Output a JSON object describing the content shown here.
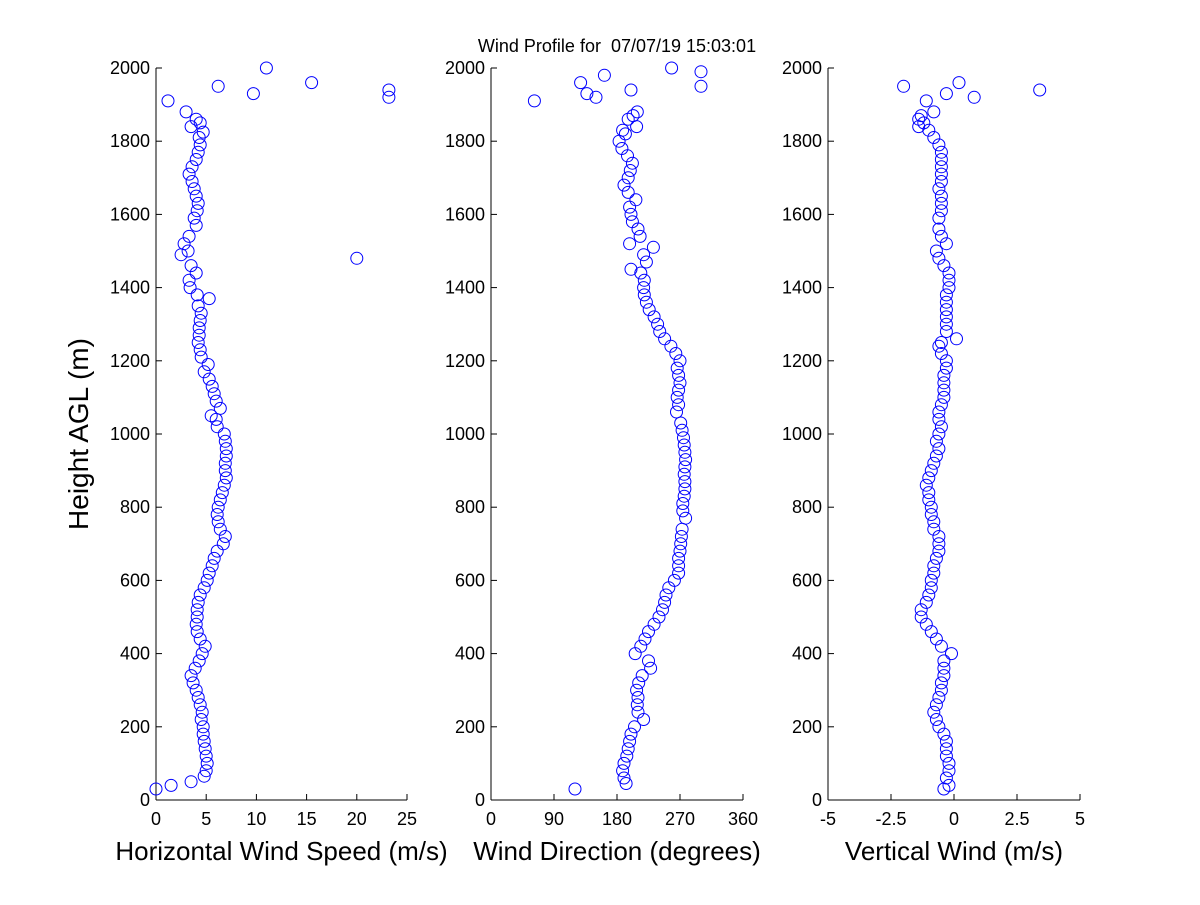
{
  "title": "Wind Profile for  07/07/19 15:03:01",
  "ylabel": "Height AGL (m)",
  "marker_color": "#0000ff",
  "chart_data": [
    {
      "type": "scatter",
      "xlabel": "Horizontal Wind Speed (m/s)",
      "ylabel": "Height AGL (m)",
      "xlim": [
        0,
        25
      ],
      "ylim": [
        0,
        2000
      ],
      "xticks": [
        0,
        5,
        10,
        15,
        20,
        25
      ],
      "xtick_labels": [
        "0",
        "5",
        "10",
        "15",
        "20",
        "25"
      ],
      "yticks": [
        0,
        200,
        400,
        600,
        800,
        1000,
        1200,
        1400,
        1600,
        1800,
        2000
      ],
      "ytick_labels": [
        "0",
        "200",
        "400",
        "600",
        "800",
        "1000",
        "1200",
        "1400",
        "1600",
        "1800",
        "2000"
      ],
      "grid": false,
      "marker": "open-circle",
      "points": [
        [
          0,
          30
        ],
        [
          1.5,
          40
        ],
        [
          3.5,
          50
        ],
        [
          4.8,
          65
        ],
        [
          5.0,
          80
        ],
        [
          5.1,
          100
        ],
        [
          5.0,
          120
        ],
        [
          4.9,
          140
        ],
        [
          4.8,
          160
        ],
        [
          4.7,
          180
        ],
        [
          4.7,
          200
        ],
        [
          4.5,
          220
        ],
        [
          4.6,
          240
        ],
        [
          4.4,
          260
        ],
        [
          4.2,
          280
        ],
        [
          4.0,
          300
        ],
        [
          3.7,
          320
        ],
        [
          3.5,
          340
        ],
        [
          3.9,
          360
        ],
        [
          4.3,
          380
        ],
        [
          4.6,
          400
        ],
        [
          4.9,
          420
        ],
        [
          4.4,
          440
        ],
        [
          4.1,
          460
        ],
        [
          4.0,
          480
        ],
        [
          4.1,
          500
        ],
        [
          4.1,
          520
        ],
        [
          4.2,
          540
        ],
        [
          4.4,
          560
        ],
        [
          4.8,
          580
        ],
        [
          5.1,
          600
        ],
        [
          5.3,
          620
        ],
        [
          5.6,
          640
        ],
        [
          5.8,
          660
        ],
        [
          6.1,
          680
        ],
        [
          6.7,
          700
        ],
        [
          6.9,
          720
        ],
        [
          6.4,
          740
        ],
        [
          6.2,
          760
        ],
        [
          6.1,
          780
        ],
        [
          6.2,
          800
        ],
        [
          6.4,
          820
        ],
        [
          6.6,
          840
        ],
        [
          6.8,
          860
        ],
        [
          7.0,
          880
        ],
        [
          6.9,
          900
        ],
        [
          6.9,
          920
        ],
        [
          7.0,
          940
        ],
        [
          7.0,
          960
        ],
        [
          6.9,
          980
        ],
        [
          6.8,
          1000
        ],
        [
          6.1,
          1020
        ],
        [
          6.0,
          1040
        ],
        [
          5.5,
          1050
        ],
        [
          6.4,
          1070
        ],
        [
          6.0,
          1090
        ],
        [
          5.8,
          1110
        ],
        [
          5.6,
          1130
        ],
        [
          5.3,
          1150
        ],
        [
          4.8,
          1170
        ],
        [
          5.2,
          1190
        ],
        [
          4.5,
          1210
        ],
        [
          4.4,
          1230
        ],
        [
          4.2,
          1250
        ],
        [
          4.3,
          1270
        ],
        [
          4.3,
          1290
        ],
        [
          4.4,
          1310
        ],
        [
          4.5,
          1330
        ],
        [
          4.2,
          1350
        ],
        [
          5.3,
          1370
        ],
        [
          4.1,
          1380
        ],
        [
          3.4,
          1400
        ],
        [
          3.3,
          1420
        ],
        [
          4.0,
          1440
        ],
        [
          3.5,
          1460
        ],
        [
          2.5,
          1490
        ],
        [
          20.0,
          1480
        ],
        [
          3.2,
          1500
        ],
        [
          2.8,
          1520
        ],
        [
          3.3,
          1540
        ],
        [
          4.0,
          1570
        ],
        [
          3.8,
          1590
        ],
        [
          4.1,
          1610
        ],
        [
          4.2,
          1630
        ],
        [
          4.0,
          1650
        ],
        [
          3.8,
          1670
        ],
        [
          3.6,
          1690
        ],
        [
          3.3,
          1710
        ],
        [
          3.6,
          1730
        ],
        [
          4.0,
          1750
        ],
        [
          4.2,
          1770
        ],
        [
          4.4,
          1790
        ],
        [
          4.3,
          1810
        ],
        [
          4.7,
          1825
        ],
        [
          3.5,
          1840
        ],
        [
          4.4,
          1850
        ],
        [
          4.0,
          1860
        ],
        [
          3.0,
          1880
        ],
        [
          1.2,
          1910
        ],
        [
          23.2,
          1920
        ],
        [
          9.7,
          1930
        ],
        [
          23.2,
          1940
        ],
        [
          6.2,
          1950
        ],
        [
          15.5,
          1960
        ],
        [
          11.0,
          2000
        ]
      ]
    },
    {
      "type": "scatter",
      "xlabel": "Wind Direction (degrees)",
      "xlim": [
        0,
        360
      ],
      "ylim": [
        0,
        2000
      ],
      "xticks": [
        0,
        90,
        180,
        270,
        360
      ],
      "xtick_labels": [
        "0",
        "90",
        "180",
        "270",
        "360"
      ],
      "yticks": [
        0,
        200,
        400,
        600,
        800,
        1000,
        1200,
        1400,
        1600,
        1800,
        2000
      ],
      "ytick_labels": [
        "0",
        "200",
        "400",
        "600",
        "800",
        "1000",
        "1200",
        "1400",
        "1600",
        "1800",
        "2000"
      ],
      "grid": false,
      "marker": "open-circle",
      "points": [
        [
          120,
          30
        ],
        [
          193,
          45
        ],
        [
          190,
          60
        ],
        [
          188,
          80
        ],
        [
          190,
          100
        ],
        [
          194,
          120
        ],
        [
          196,
          140
        ],
        [
          198,
          160
        ],
        [
          200,
          180
        ],
        [
          205,
          200
        ],
        [
          218,
          220
        ],
        [
          210,
          240
        ],
        [
          209,
          260
        ],
        [
          210,
          280
        ],
        [
          208,
          300
        ],
        [
          211,
          320
        ],
        [
          216,
          340
        ],
        [
          228,
          360
        ],
        [
          225,
          380
        ],
        [
          206,
          400
        ],
        [
          214,
          420
        ],
        [
          220,
          440
        ],
        [
          225,
          460
        ],
        [
          233,
          480
        ],
        [
          240,
          500
        ],
        [
          245,
          520
        ],
        [
          248,
          540
        ],
        [
          250,
          560
        ],
        [
          254,
          580
        ],
        [
          262,
          600
        ],
        [
          268,
          620
        ],
        [
          268,
          640
        ],
        [
          268,
          660
        ],
        [
          270,
          680
        ],
        [
          271,
          700
        ],
        [
          272,
          720
        ],
        [
          273,
          740
        ],
        [
          278,
          770
        ],
        [
          274,
          790
        ],
        [
          274,
          810
        ],
        [
          276,
          830
        ],
        [
          277,
          850
        ],
        [
          277,
          870
        ],
        [
          276,
          890
        ],
        [
          277,
          910
        ],
        [
          278,
          930
        ],
        [
          277,
          950
        ],
        [
          276,
          970
        ],
        [
          275,
          990
        ],
        [
          273,
          1010
        ],
        [
          271,
          1030
        ],
        [
          265,
          1060
        ],
        [
          268,
          1080
        ],
        [
          266,
          1100
        ],
        [
          268,
          1120
        ],
        [
          270,
          1140
        ],
        [
          268,
          1160
        ],
        [
          266,
          1180
        ],
        [
          270,
          1200
        ],
        [
          264,
          1220
        ],
        [
          257,
          1240
        ],
        [
          248,
          1260
        ],
        [
          241,
          1280
        ],
        [
          238,
          1300
        ],
        [
          233,
          1320
        ],
        [
          226,
          1340
        ],
        [
          222,
          1360
        ],
        [
          219,
          1380
        ],
        [
          218,
          1400
        ],
        [
          219,
          1420
        ],
        [
          214,
          1440
        ],
        [
          200,
          1450
        ],
        [
          222,
          1470
        ],
        [
          218,
          1490
        ],
        [
          232,
          1510
        ],
        [
          198,
          1520
        ],
        [
          213,
          1540
        ],
        [
          210,
          1560
        ],
        [
          202,
          1580
        ],
        [
          200,
          1600
        ],
        [
          198,
          1620
        ],
        [
          207,
          1640
        ],
        [
          196,
          1660
        ],
        [
          190,
          1680
        ],
        [
          196,
          1700
        ],
        [
          199,
          1720
        ],
        [
          202,
          1740
        ],
        [
          195,
          1760
        ],
        [
          187,
          1780
        ],
        [
          183,
          1800
        ],
        [
          192,
          1820
        ],
        [
          188,
          1830
        ],
        [
          208,
          1840
        ],
        [
          196,
          1860
        ],
        [
          203,
          1870
        ],
        [
          209,
          1880
        ],
        [
          62,
          1910
        ],
        [
          150,
          1920
        ],
        [
          137,
          1930
        ],
        [
          200,
          1940
        ],
        [
          300,
          1950
        ],
        [
          128,
          1960
        ],
        [
          162,
          1980
        ],
        [
          300,
          1990
        ],
        [
          258,
          2000
        ]
      ]
    },
    {
      "type": "scatter",
      "xlabel": "Vertical Wind (m/s)",
      "xlim": [
        -5,
        5
      ],
      "ylim": [
        0,
        2000
      ],
      "xticks": [
        -5,
        -2.5,
        0,
        2.5,
        5
      ],
      "xtick_labels": [
        "-5",
        "-2.5",
        "0",
        "2.5",
        "5"
      ],
      "yticks": [
        0,
        200,
        400,
        600,
        800,
        1000,
        1200,
        1400,
        1600,
        1800,
        2000
      ],
      "ytick_labels": [
        "0",
        "200",
        "400",
        "600",
        "800",
        "1000",
        "1200",
        "1400",
        "1600",
        "1800",
        "2000"
      ],
      "grid": false,
      "marker": "open-circle",
      "points": [
        [
          -0.4,
          30
        ],
        [
          -0.2,
          40
        ],
        [
          -0.3,
          60
        ],
        [
          -0.2,
          80
        ],
        [
          -0.2,
          100
        ],
        [
          -0.3,
          120
        ],
        [
          -0.3,
          140
        ],
        [
          -0.3,
          160
        ],
        [
          -0.4,
          180
        ],
        [
          -0.6,
          200
        ],
        [
          -0.7,
          220
        ],
        [
          -0.8,
          240
        ],
        [
          -0.7,
          260
        ],
        [
          -0.6,
          280
        ],
        [
          -0.5,
          300
        ],
        [
          -0.5,
          320
        ],
        [
          -0.4,
          340
        ],
        [
          -0.4,
          360
        ],
        [
          -0.4,
          380
        ],
        [
          -0.1,
          400
        ],
        [
          -0.5,
          420
        ],
        [
          -0.7,
          440
        ],
        [
          -0.9,
          460
        ],
        [
          -1.1,
          480
        ],
        [
          -1.3,
          500
        ],
        [
          -1.3,
          520
        ],
        [
          -1.1,
          540
        ],
        [
          -1.0,
          560
        ],
        [
          -0.9,
          580
        ],
        [
          -0.9,
          600
        ],
        [
          -0.8,
          620
        ],
        [
          -0.8,
          640
        ],
        [
          -0.7,
          660
        ],
        [
          -0.6,
          680
        ],
        [
          -0.6,
          700
        ],
        [
          -0.6,
          720
        ],
        [
          -0.8,
          740
        ],
        [
          -0.8,
          760
        ],
        [
          -0.9,
          780
        ],
        [
          -0.9,
          800
        ],
        [
          -1.0,
          820
        ],
        [
          -1.0,
          840
        ],
        [
          -1.1,
          860
        ],
        [
          -1.0,
          880
        ],
        [
          -0.9,
          900
        ],
        [
          -0.8,
          920
        ],
        [
          -0.7,
          940
        ],
        [
          -0.6,
          960
        ],
        [
          -0.7,
          980
        ],
        [
          -0.6,
          1000
        ],
        [
          -0.5,
          1020
        ],
        [
          -0.6,
          1040
        ],
        [
          -0.6,
          1060
        ],
        [
          -0.5,
          1080
        ],
        [
          -0.4,
          1100
        ],
        [
          -0.4,
          1120
        ],
        [
          -0.4,
          1140
        ],
        [
          -0.4,
          1160
        ],
        [
          -0.3,
          1180
        ],
        [
          -0.3,
          1200
        ],
        [
          -0.5,
          1220
        ],
        [
          -0.6,
          1240
        ],
        [
          -0.5,
          1250
        ],
        [
          0.1,
          1260
        ],
        [
          -0.3,
          1280
        ],
        [
          -0.3,
          1300
        ],
        [
          -0.3,
          1320
        ],
        [
          -0.3,
          1340
        ],
        [
          -0.3,
          1360
        ],
        [
          -0.3,
          1380
        ],
        [
          -0.2,
          1400
        ],
        [
          -0.2,
          1420
        ],
        [
          -0.2,
          1440
        ],
        [
          -0.4,
          1460
        ],
        [
          -0.6,
          1480
        ],
        [
          -0.7,
          1500
        ],
        [
          -0.3,
          1520
        ],
        [
          -0.5,
          1540
        ],
        [
          -0.6,
          1560
        ],
        [
          -0.6,
          1590
        ],
        [
          -0.5,
          1610
        ],
        [
          -0.5,
          1630
        ],
        [
          -0.5,
          1650
        ],
        [
          -0.6,
          1670
        ],
        [
          -0.5,
          1690
        ],
        [
          -0.5,
          1710
        ],
        [
          -0.5,
          1730
        ],
        [
          -0.5,
          1750
        ],
        [
          -0.5,
          1770
        ],
        [
          -0.6,
          1790
        ],
        [
          -0.8,
          1810
        ],
        [
          -1.0,
          1830
        ],
        [
          -1.4,
          1840
        ],
        [
          -1.2,
          1850
        ],
        [
          -1.4,
          1860
        ],
        [
          -1.3,
          1870
        ],
        [
          -0.8,
          1880
        ],
        [
          -1.1,
          1910
        ],
        [
          0.8,
          1920
        ],
        [
          -0.3,
          1930
        ],
        [
          3.4,
          1940
        ],
        [
          -2.0,
          1950
        ],
        [
          0.2,
          1960
        ]
      ]
    }
  ]
}
